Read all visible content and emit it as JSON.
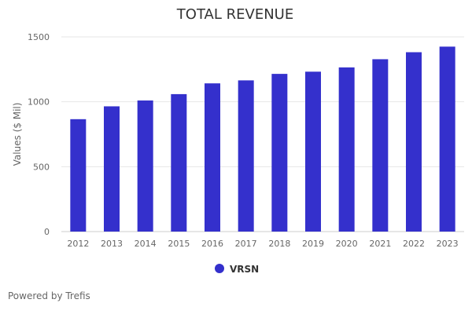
{
  "chart_data": {
    "type": "bar",
    "title": "TOTAL REVENUE",
    "ylabel": "Values ($ Mil)",
    "xlabel": "",
    "categories": [
      "2012",
      "2013",
      "2014",
      "2015",
      "2016",
      "2017",
      "2018",
      "2019",
      "2020",
      "2021",
      "2022",
      "2023"
    ],
    "series": [
      {
        "name": "VRSN",
        "values": [
          866,
          965,
          1010,
          1059,
          1142,
          1165,
          1215,
          1232,
          1265,
          1328,
          1382,
          1425
        ]
      }
    ],
    "ylim": [
      0,
      1500
    ],
    "yticks": [
      0,
      500,
      1000,
      1500
    ],
    "grid": true,
    "legend": "bottom-center",
    "colors": {
      "bar": "#3430CC",
      "grid": "#e6e6e6",
      "axis": "#cccccc"
    }
  },
  "footer": {
    "credit": "Powered by Trefis"
  }
}
